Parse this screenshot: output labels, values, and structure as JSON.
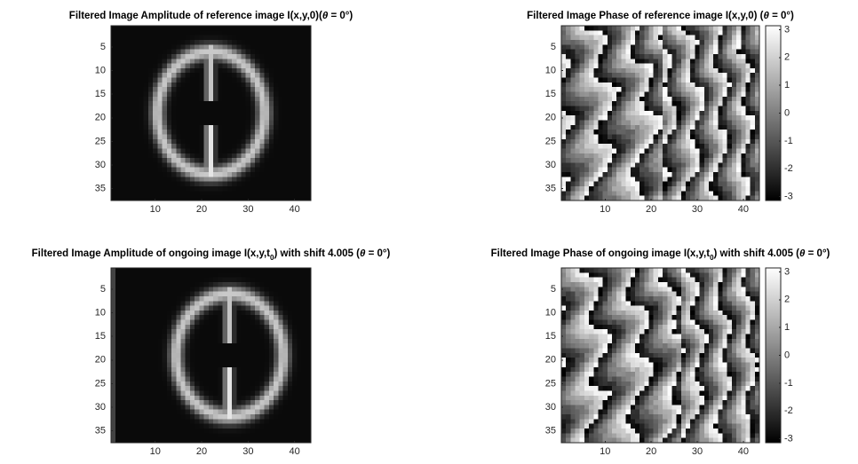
{
  "chart_data": [
    {
      "type": "image",
      "title": [
        "Filtered Image Amplitude of reference image I(x,y,0)(",
        "θ",
        " = 0°)"
      ],
      "xlim": [
        0.5,
        43.5
      ],
      "ylim": [
        0.5,
        37.5
      ],
      "ydir": "reverse",
      "xticks": [
        10,
        20,
        30,
        40
      ],
      "yticks": [
        5,
        10,
        15,
        20,
        25,
        30,
        35
      ],
      "colormap": "gray"
    },
    {
      "type": "image",
      "title": [
        "Filtered Image Phase of reference image I(x,y,0) (",
        "θ",
        " = 0°)"
      ],
      "xlim": [
        0.5,
        43.5
      ],
      "ylim": [
        0.5,
        37.5
      ],
      "ydir": "reverse",
      "xticks": [
        10,
        20,
        30,
        40
      ],
      "yticks": [
        5,
        10,
        15,
        20,
        25,
        30,
        35
      ],
      "colormap": "gray",
      "colorbar": {
        "clim": [
          -3.1416,
          3.1416
        ],
        "ticks": [
          -3,
          -2,
          -1,
          0,
          1,
          2,
          3
        ]
      }
    },
    {
      "type": "image",
      "title": [
        "Filtered Image Amplitude of ongoing image I(x,y,t",
        "0",
        ") with shift 4.005 (",
        "θ",
        " = 0°)"
      ],
      "xlim": [
        0.5,
        43.5
      ],
      "ylim": [
        0.5,
        37.5
      ],
      "ydir": "reverse",
      "xticks": [
        10,
        20,
        30,
        40
      ],
      "yticks": [
        5,
        10,
        15,
        20,
        25,
        30,
        35
      ],
      "colormap": "gray"
    },
    {
      "type": "image",
      "title": [
        "Filtered Image Phase of ongoing image I(x,y,t",
        "0",
        ") with shift 4.005 (",
        "θ",
        " = 0°)"
      ],
      "xlim": [
        0.5,
        43.5
      ],
      "ylim": [
        0.5,
        37.5
      ],
      "ydir": "reverse",
      "xticks": [
        10,
        20,
        30,
        40
      ],
      "yticks": [
        5,
        10,
        15,
        20,
        25,
        30,
        35
      ],
      "colormap": "gray",
      "colorbar": {
        "clim": [
          -3.1416,
          3.1416
        ],
        "ticks": [
          -3,
          -2,
          -1,
          0,
          1,
          2,
          3
        ]
      }
    }
  ]
}
